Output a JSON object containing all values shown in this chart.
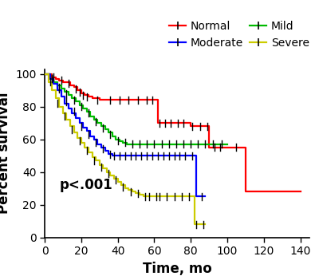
{
  "xlabel": "Time, mo",
  "ylabel": "Percent survival",
  "xlim": [
    0,
    145
  ],
  "ylim": [
    0,
    103
  ],
  "xticks": [
    0,
    20,
    40,
    60,
    80,
    100,
    120,
    140
  ],
  "yticks": [
    0,
    20,
    40,
    60,
    80,
    100
  ],
  "annotation": "p<.001",
  "groups": {
    "Normal": {
      "color": "#FF0000",
      "steps": [
        [
          0,
          100
        ],
        [
          2,
          100
        ],
        [
          4,
          98
        ],
        [
          6,
          97
        ],
        [
          8,
          96
        ],
        [
          10,
          95
        ],
        [
          12,
          95
        ],
        [
          14,
          93
        ],
        [
          16,
          92
        ],
        [
          18,
          90
        ],
        [
          20,
          88
        ],
        [
          22,
          87
        ],
        [
          24,
          86
        ],
        [
          26,
          85
        ],
        [
          27,
          85
        ],
        [
          30,
          84
        ],
        [
          35,
          84
        ],
        [
          38,
          84
        ],
        [
          40,
          84
        ],
        [
          42,
          84
        ],
        [
          45,
          84
        ],
        [
          47,
          84
        ],
        [
          50,
          84
        ],
        [
          55,
          84
        ],
        [
          58,
          84
        ],
        [
          60,
          84
        ],
        [
          62,
          70
        ],
        [
          65,
          70
        ],
        [
          68,
          70
        ],
        [
          70,
          70
        ],
        [
          72,
          70
        ],
        [
          75,
          70
        ],
        [
          78,
          70
        ],
        [
          80,
          68
        ],
        [
          82,
          68
        ],
        [
          84,
          68
        ],
        [
          86,
          68
        ],
        [
          88,
          68
        ],
        [
          90,
          55
        ],
        [
          92,
          55
        ],
        [
          95,
          55
        ],
        [
          100,
          55
        ],
        [
          108,
          55
        ],
        [
          110,
          28
        ],
        [
          140,
          28
        ]
      ],
      "censors": [
        [
          5,
          98
        ],
        [
          9,
          96
        ],
        [
          13,
          94
        ],
        [
          17,
          91
        ],
        [
          19,
          89
        ],
        [
          21,
          87
        ],
        [
          23,
          86
        ],
        [
          29,
          84
        ],
        [
          36,
          84
        ],
        [
          41,
          84
        ],
        [
          46,
          84
        ],
        [
          51,
          84
        ],
        [
          56,
          84
        ],
        [
          59,
          84
        ],
        [
          63,
          70
        ],
        [
          66,
          70
        ],
        [
          69,
          70
        ],
        [
          73,
          70
        ],
        [
          76,
          70
        ],
        [
          81,
          68
        ],
        [
          85,
          68
        ],
        [
          89,
          68
        ],
        [
          93,
          55
        ],
        [
          96,
          55
        ],
        [
          105,
          55
        ]
      ]
    },
    "Mild": {
      "color": "#00BB00",
      "steps": [
        [
          0,
          100
        ],
        [
          3,
          97
        ],
        [
          5,
          95
        ],
        [
          7,
          93
        ],
        [
          9,
          91
        ],
        [
          11,
          89
        ],
        [
          13,
          87
        ],
        [
          15,
          85
        ],
        [
          17,
          83
        ],
        [
          19,
          81
        ],
        [
          21,
          79
        ],
        [
          23,
          77
        ],
        [
          25,
          74
        ],
        [
          27,
          72
        ],
        [
          29,
          70
        ],
        [
          31,
          68
        ],
        [
          33,
          66
        ],
        [
          35,
          64
        ],
        [
          37,
          62
        ],
        [
          39,
          60
        ],
        [
          41,
          59
        ],
        [
          43,
          58
        ],
        [
          45,
          57
        ],
        [
          47,
          57
        ],
        [
          50,
          57
        ],
        [
          55,
          57
        ],
        [
          60,
          57
        ],
        [
          65,
          57
        ],
        [
          70,
          57
        ],
        [
          75,
          57
        ],
        [
          80,
          57
        ],
        [
          85,
          57
        ],
        [
          90,
          57
        ],
        [
          95,
          57
        ],
        [
          100,
          57
        ]
      ],
      "censors": [
        [
          4,
          97
        ],
        [
          8,
          92
        ],
        [
          12,
          88
        ],
        [
          16,
          84
        ],
        [
          20,
          80
        ],
        [
          24,
          76
        ],
        [
          28,
          71
        ],
        [
          32,
          67
        ],
        [
          36,
          63
        ],
        [
          40,
          59
        ],
        [
          44,
          58
        ],
        [
          48,
          57
        ],
        [
          52,
          57
        ],
        [
          56,
          57
        ],
        [
          60,
          57
        ],
        [
          64,
          57
        ],
        [
          68,
          57
        ],
        [
          72,
          57
        ],
        [
          76,
          57
        ],
        [
          80,
          57
        ],
        [
          84,
          57
        ],
        [
          88,
          57
        ],
        [
          92,
          57
        ],
        [
          97,
          57
        ]
      ]
    },
    "Moderate": {
      "color": "#0000FF",
      "steps": [
        [
          0,
          100
        ],
        [
          3,
          97
        ],
        [
          5,
          94
        ],
        [
          7,
          90
        ],
        [
          9,
          86
        ],
        [
          11,
          82
        ],
        [
          13,
          79
        ],
        [
          15,
          76
        ],
        [
          17,
          73
        ],
        [
          19,
          70
        ],
        [
          21,
          67
        ],
        [
          23,
          65
        ],
        [
          25,
          62
        ],
        [
          27,
          60
        ],
        [
          29,
          57
        ],
        [
          31,
          55
        ],
        [
          33,
          53
        ],
        [
          35,
          51
        ],
        [
          37,
          50
        ],
        [
          40,
          50
        ],
        [
          45,
          50
        ],
        [
          50,
          50
        ],
        [
          55,
          50
        ],
        [
          60,
          50
        ],
        [
          65,
          50
        ],
        [
          70,
          50
        ],
        [
          75,
          50
        ],
        [
          80,
          50
        ],
        [
          83,
          25
        ],
        [
          88,
          25
        ]
      ],
      "censors": [
        [
          4,
          97
        ],
        [
          8,
          91
        ],
        [
          12,
          83
        ],
        [
          16,
          77
        ],
        [
          20,
          68
        ],
        [
          24,
          63
        ],
        [
          28,
          58
        ],
        [
          32,
          54
        ],
        [
          36,
          51
        ],
        [
          38,
          50
        ],
        [
          41,
          50
        ],
        [
          44,
          50
        ],
        [
          47,
          50
        ],
        [
          50,
          50
        ],
        [
          53,
          50
        ],
        [
          56,
          50
        ],
        [
          59,
          50
        ],
        [
          62,
          50
        ],
        [
          65,
          50
        ],
        [
          68,
          50
        ],
        [
          71,
          50
        ],
        [
          74,
          50
        ],
        [
          77,
          50
        ],
        [
          81,
          50
        ],
        [
          86,
          25
        ]
      ]
    },
    "Severe": {
      "color": "#CCCC00",
      "steps": [
        [
          0,
          100
        ],
        [
          2,
          95
        ],
        [
          4,
          90
        ],
        [
          6,
          85
        ],
        [
          8,
          80
        ],
        [
          10,
          76
        ],
        [
          12,
          72
        ],
        [
          14,
          68
        ],
        [
          16,
          64
        ],
        [
          18,
          61
        ],
        [
          20,
          58
        ],
        [
          22,
          55
        ],
        [
          24,
          52
        ],
        [
          26,
          49
        ],
        [
          28,
          47
        ],
        [
          30,
          44
        ],
        [
          32,
          42
        ],
        [
          34,
          40
        ],
        [
          36,
          38
        ],
        [
          38,
          36
        ],
        [
          40,
          34
        ],
        [
          42,
          32
        ],
        [
          44,
          30
        ],
        [
          46,
          29
        ],
        [
          48,
          28
        ],
        [
          50,
          27
        ],
        [
          52,
          26
        ],
        [
          54,
          25
        ],
        [
          56,
          25
        ],
        [
          58,
          25
        ],
        [
          60,
          25
        ],
        [
          62,
          25
        ],
        [
          64,
          25
        ],
        [
          66,
          25
        ],
        [
          68,
          25
        ],
        [
          70,
          25
        ],
        [
          72,
          25
        ],
        [
          74,
          25
        ],
        [
          76,
          25
        ],
        [
          78,
          25
        ],
        [
          80,
          25
        ],
        [
          82,
          8
        ],
        [
          84,
          8
        ],
        [
          86,
          8
        ],
        [
          88,
          8
        ]
      ],
      "censors": [
        [
          3,
          95
        ],
        [
          7,
          82
        ],
        [
          11,
          74
        ],
        [
          15,
          66
        ],
        [
          19,
          59
        ],
        [
          23,
          53
        ],
        [
          27,
          47
        ],
        [
          31,
          43
        ],
        [
          35,
          39
        ],
        [
          39,
          35
        ],
        [
          43,
          31
        ],
        [
          47,
          28
        ],
        [
          51,
          27
        ],
        [
          55,
          25
        ],
        [
          57,
          25
        ],
        [
          61,
          25
        ],
        [
          63,
          25
        ],
        [
          67,
          25
        ],
        [
          71,
          25
        ],
        [
          75,
          25
        ],
        [
          79,
          25
        ],
        [
          83,
          8
        ],
        [
          87,
          8
        ]
      ]
    }
  },
  "legend_order": [
    "Normal",
    "Moderate",
    "Mild",
    "Severe"
  ],
  "background_color": "#FFFFFF",
  "tick_fontsize": 10,
  "label_fontsize": 12,
  "legend_fontsize": 10
}
